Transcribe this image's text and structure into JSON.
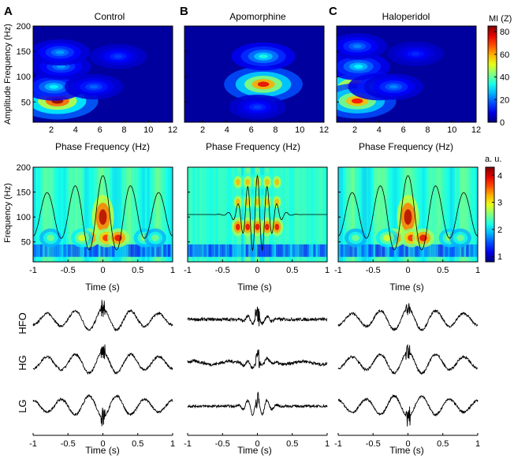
{
  "figure": {
    "panel_letters": [
      "A",
      "B",
      "C"
    ],
    "conditions": [
      "Control",
      "Apomorphine",
      "Haloperidol"
    ],
    "row1": {
      "xlabel": "Phase Frequency (Hz)",
      "ylabel": "Amplitude Frequency (Hz)",
      "xticks": [
        "2",
        "4",
        "6",
        "8",
        "10",
        "12"
      ],
      "yticks": [
        "50",
        "100",
        "150",
        "200"
      ],
      "colorbar": {
        "label": "MI (Z)",
        "ticks": [
          "0",
          "20",
          "40",
          "60",
          "80"
        ]
      }
    },
    "row2": {
      "xlabel": "Time (s)",
      "ylabel": "Frequency (Hz)",
      "xticks": [
        "-1",
        "-0.5",
        "0",
        "0.5",
        "1"
      ],
      "yticks": [
        "50",
        "100",
        "150",
        "200"
      ],
      "colorbar": {
        "label": "a. u.",
        "ticks": [
          "1",
          "2",
          "3",
          "4"
        ]
      }
    },
    "row3": {
      "trace_labels": [
        "HFO",
        "HG",
        "LG"
      ],
      "xlabel": "Time (s)",
      "xticks": [
        "-1",
        "-0.5",
        "0",
        "0.5",
        "1"
      ]
    }
  },
  "chart_data": [
    {
      "type": "heatmap",
      "panel": "A",
      "title": "Control",
      "xlabel": "Phase Frequency (Hz)",
      "ylabel": "Amplitude Frequency (Hz)",
      "xlim": [
        0.5,
        12
      ],
      "ylim": [
        10,
        200
      ],
      "colorbar": {
        "label": "MI (Z)",
        "range": [
          0,
          85
        ]
      },
      "blobs": [
        {
          "x": 2.5,
          "y": 52,
          "value": 80
        },
        {
          "x": 2.2,
          "y": 80,
          "value": 28
        },
        {
          "x": 2.8,
          "y": 120,
          "value": 20
        },
        {
          "x": 2.7,
          "y": 148,
          "value": 20
        },
        {
          "x": 5.5,
          "y": 80,
          "value": 15
        },
        {
          "x": 7.5,
          "y": 140,
          "value": 12
        }
      ]
    },
    {
      "type": "heatmap",
      "panel": "B",
      "title": "Apomorphine",
      "xlabel": "Phase Frequency (Hz)",
      "xlim": [
        0.5,
        12
      ],
      "ylim": [
        10,
        200
      ],
      "blobs": [
        {
          "x": 7.0,
          "y": 85,
          "value": 72
        },
        {
          "x": 7.0,
          "y": 140,
          "value": 30
        },
        {
          "x": 6.5,
          "y": 40,
          "value": 12
        }
      ]
    },
    {
      "type": "heatmap",
      "panel": "C",
      "title": "Haloperidol",
      "xlabel": "Phase Frequency (Hz)",
      "xlim": [
        0.5,
        12
      ],
      "ylim": [
        10,
        200
      ],
      "blobs": [
        {
          "x": 2.2,
          "y": 80,
          "value": 78
        },
        {
          "x": 2.2,
          "y": 52,
          "value": 70
        },
        {
          "x": 2.3,
          "y": 120,
          "value": 28
        },
        {
          "x": 2.2,
          "y": 160,
          "value": 18
        },
        {
          "x": 4.0,
          "y": 80,
          "value": 25
        },
        {
          "x": 5.2,
          "y": 80,
          "value": 18
        },
        {
          "x": 7.0,
          "y": 145,
          "value": 10
        }
      ]
    },
    {
      "type": "heatmap",
      "panel": "A",
      "xlabel": "Time (s)",
      "ylabel": "Frequency (Hz)",
      "xlim": [
        -1,
        1
      ],
      "ylim": [
        10,
        200
      ],
      "colorbar": {
        "label": "a. u.",
        "range": [
          0.8,
          4.3
        ]
      },
      "theta_period_s": 0.4
    },
    {
      "type": "heatmap",
      "panel": "B",
      "xlabel": "Time (s)",
      "xlim": [
        -1,
        1
      ],
      "ylim": [
        10,
        200
      ],
      "theta_period_s": 0.14
    },
    {
      "type": "heatmap",
      "panel": "C",
      "xlabel": "Time (s)",
      "xlim": [
        -1,
        1
      ],
      "ylim": [
        10,
        200
      ],
      "theta_period_s": 0.4
    },
    {
      "type": "line",
      "panel": "A",
      "xlabel": "Time (s)",
      "xlim": [
        -1,
        1
      ],
      "series": [
        {
          "name": "HFO"
        },
        {
          "name": "HG"
        },
        {
          "name": "LG"
        }
      ]
    },
    {
      "type": "line",
      "panel": "B",
      "xlabel": "Time (s)",
      "xlim": [
        -1,
        1
      ],
      "series": [
        {
          "name": "HFO"
        },
        {
          "name": "HG"
        },
        {
          "name": "LG"
        }
      ]
    },
    {
      "type": "line",
      "panel": "C",
      "xlabel": "Time (s)",
      "xlim": [
        -1,
        1
      ],
      "series": [
        {
          "name": "HFO"
        },
        {
          "name": "HG"
        },
        {
          "name": "LG"
        }
      ]
    }
  ]
}
